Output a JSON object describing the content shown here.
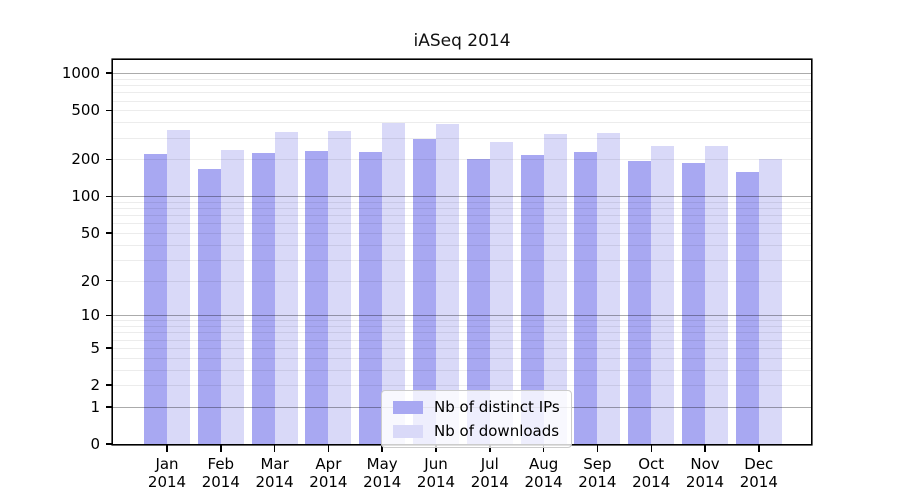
{
  "chart_data": {
    "type": "bar",
    "title": "iASeq 2014",
    "xlabel": "",
    "ylabel": "",
    "yscale": "log1p",
    "ylim": [
      0,
      1276
    ],
    "y_ticks": [
      0,
      1,
      2,
      5,
      10,
      20,
      50,
      100,
      200,
      500,
      1000
    ],
    "grid": "both",
    "legend_position": "lower center",
    "categories": [
      "Jan 2014",
      "Feb 2014",
      "Mar 2014",
      "Apr 2014",
      "May 2014",
      "Jun 2014",
      "Jul 2014",
      "Aug 2014",
      "Sep 2014",
      "Oct 2014",
      "Nov 2014",
      "Dec 2014"
    ],
    "series": [
      {
        "name": "Nb of distinct IPs",
        "color": "#a8a8f2",
        "values": [
          222,
          168,
          225,
          235,
          228,
          290,
          200,
          218,
          231,
          195,
          187,
          158
        ]
      },
      {
        "name": "Nb of downloads",
        "color": "#d9d9f8",
        "values": [
          345,
          238,
          333,
          340,
          395,
          386,
          279,
          322,
          325,
          256,
          258,
          200
        ]
      }
    ]
  },
  "colors": {
    "major_gridline": "#a9a9a9",
    "minor_gridline": "#ececec",
    "axis": "#000000",
    "legend_border": "#cccccc"
  }
}
